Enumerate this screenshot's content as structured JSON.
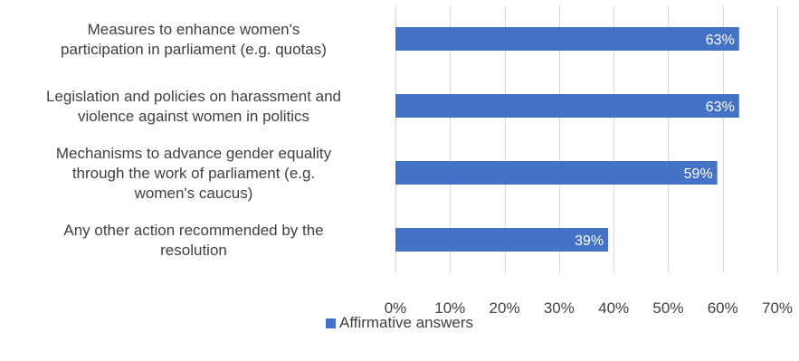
{
  "chart_data": {
    "type": "bar",
    "orientation": "horizontal",
    "categories": [
      [
        "Measures to enhance women's",
        "participation in parliament (e.g. quotas)"
      ],
      [
        "Legislation and policies on harassment and",
        "violence against women in politics"
      ],
      [
        "Mechanisms to advance gender equality",
        "through the work of parliament (e.g.",
        "women's caucus)"
      ],
      [
        "Any other action recommended by the",
        "resolution"
      ]
    ],
    "series": [
      {
        "name": "Affirmative answers",
        "values": [
          0.63,
          0.63,
          0.59,
          0.39
        ],
        "labels": [
          "63%",
          "63%",
          "59%",
          "39%"
        ],
        "color": "#4472c4"
      }
    ],
    "xlim": [
      0,
      0.7
    ],
    "xticks": [
      0,
      0.1,
      0.2,
      0.3,
      0.4,
      0.5,
      0.6,
      0.7
    ],
    "xtick_labels": [
      "0%",
      "10%",
      "20%",
      "30%",
      "40%",
      "50%",
      "60%",
      "70%"
    ],
    "grid": true,
    "gridline_color": "#d9d9d9",
    "legend_position": "bottom"
  }
}
